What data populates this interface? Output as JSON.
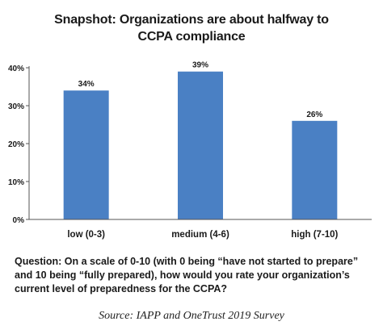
{
  "header": {
    "title_line1": "Snapshot: Organizations are about halfway to",
    "title_line2": "CCPA compliance"
  },
  "chart_data": {
    "type": "bar",
    "categories": [
      "low (0-3)",
      "medium (4-6)",
      "high (7-10)"
    ],
    "values": [
      34,
      39,
      26
    ],
    "value_labels": [
      "34%",
      "39%",
      "26%"
    ],
    "ylim": [
      0,
      40
    ],
    "yticks": [
      0,
      10,
      20,
      30,
      40
    ],
    "ytick_labels": [
      "0%",
      "10%",
      "20%",
      "30%",
      "40%"
    ],
    "xlabel": "",
    "ylabel": "",
    "grid": false,
    "bar_color": "#4a80c4"
  },
  "footer": {
    "question": "Question: On a scale of 0-10 (with 0 being “have not started to prepare” and 10 being “fully prepared), how would you rate your organization’s current level of preparedness for the CCPA?",
    "source": "Source: IAPP and OneTrust 2019 Survey"
  }
}
